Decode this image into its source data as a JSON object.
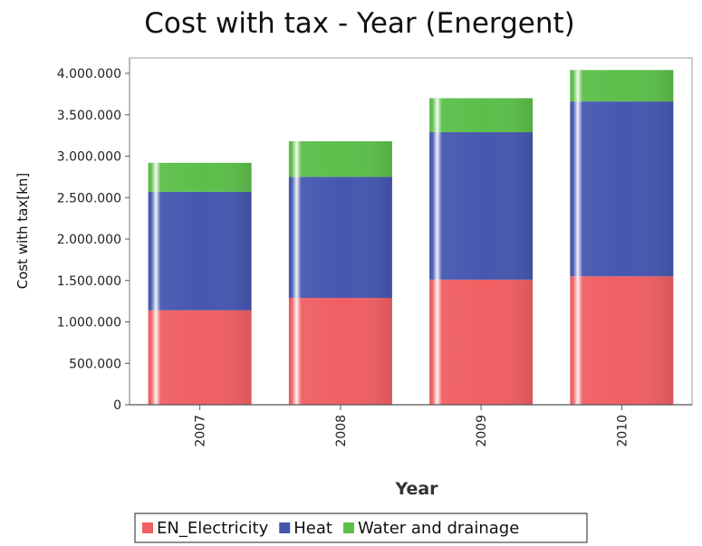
{
  "chart_data": {
    "type": "bar",
    "stacked": true,
    "title": "Cost with tax - Year (Energent)",
    "xlabel": "Year",
    "ylabel": "Cost with tax[kn]",
    "categories": [
      "2007",
      "2008",
      "2009",
      "2010"
    ],
    "ylim": [
      0,
      4000000
    ],
    "ytick_labels": [
      "0",
      "500.000",
      "1.000.000",
      "1.500.000",
      "2.000.000",
      "2.500.000",
      "3.000.000",
      "3.500.000",
      "4.000.000"
    ],
    "series": [
      {
        "name": "EN_Electricity",
        "color": "#f05f63",
        "values": [
          1140000,
          1290000,
          1510000,
          1550000
        ]
      },
      {
        "name": "Heat",
        "color": "#4657b0",
        "values": [
          1430000,
          1460000,
          1780000,
          2110000
        ]
      },
      {
        "name": "Water and drainage",
        "color": "#5cbf4a",
        "values": [
          350000,
          430000,
          410000,
          380000
        ]
      }
    ],
    "legend": "bottom-center",
    "grid": false
  }
}
